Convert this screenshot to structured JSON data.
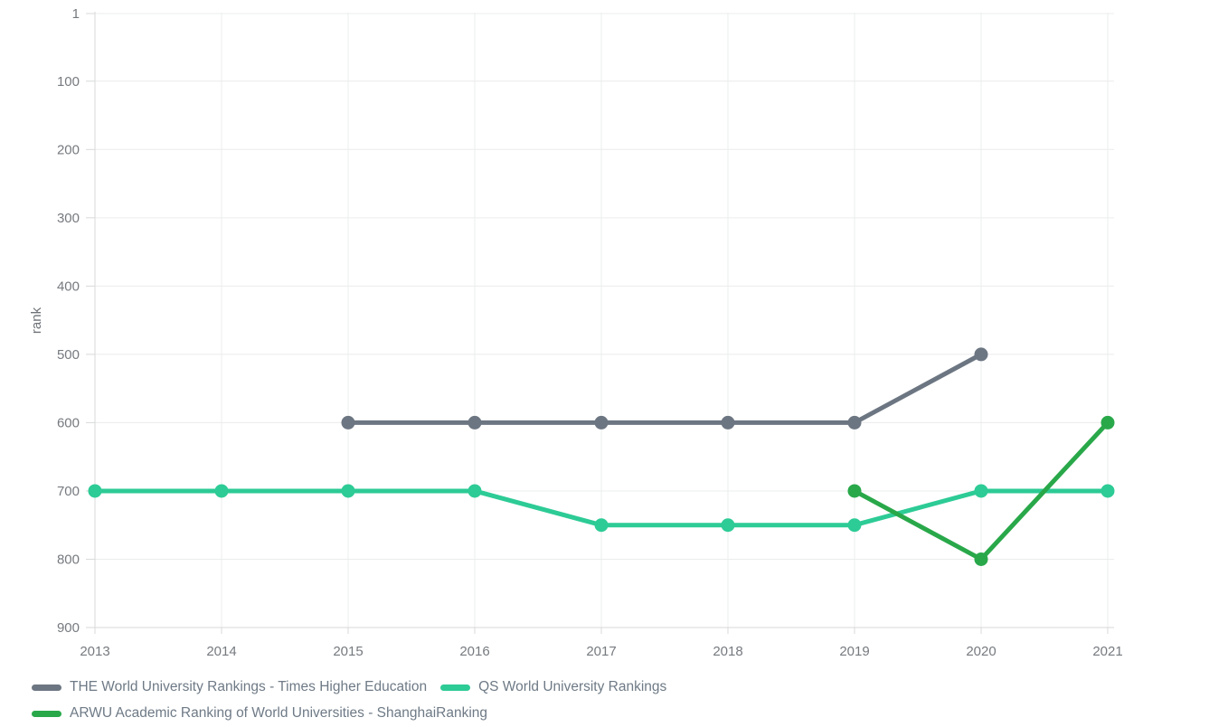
{
  "chart_data": {
    "type": "line",
    "title": "",
    "xlabel": "",
    "ylabel": "rank",
    "x": [
      2013,
      2014,
      2015,
      2016,
      2017,
      2018,
      2019,
      2020,
      2021
    ],
    "y_ticks": [
      1,
      100,
      200,
      300,
      400,
      500,
      600,
      700,
      800,
      900
    ],
    "ylim": [
      1,
      900
    ],
    "y_inverted": true,
    "grid": true,
    "legend_position": "bottom-left",
    "series": [
      {
        "name": "THE World University Rankings - Times Higher Education",
        "color": "#6c7682",
        "values": [
          null,
          null,
          600,
          600,
          600,
          600,
          600,
          500,
          null
        ]
      },
      {
        "name": "QS World University Rankings",
        "color": "#2dcb96",
        "values": [
          700,
          700,
          700,
          700,
          750,
          750,
          750,
          700,
          700
        ]
      },
      {
        "name": "ARWU Academic Ranking of World Universities - ShanghaiRanking",
        "color": "#29a84a",
        "values": [
          null,
          null,
          null,
          null,
          null,
          null,
          700,
          800,
          600
        ]
      }
    ],
    "layout": {
      "grid_color": "#ebecec",
      "axis_color": "#d8d9da",
      "tick_text_color": "#767a7f",
      "axis_title_color": "#6e7378"
    }
  }
}
